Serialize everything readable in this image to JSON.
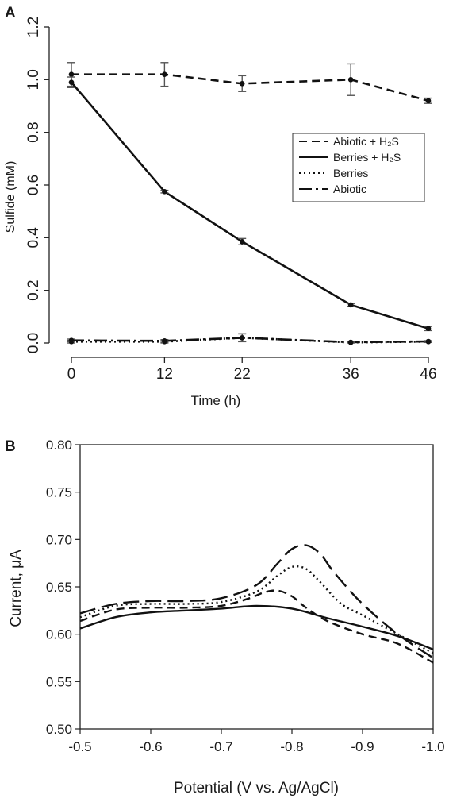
{
  "panels": {
    "a": {
      "letter": "A"
    },
    "b": {
      "letter": "B"
    }
  },
  "colors": {
    "line": "#111111",
    "errorbar": "#555555",
    "axis": "#222222"
  },
  "chart_data": [
    {
      "id": "A",
      "type": "line",
      "ylabel": "Sulfide (mM)",
      "xlabel": "Time (h)",
      "x_ticks": [
        0,
        12,
        22,
        36,
        46
      ],
      "x_tick_labels": [
        "0",
        "12",
        "22",
        "36",
        "46"
      ],
      "ylim": [
        0,
        1.2
      ],
      "y_ticks": [
        0.0,
        0.2,
        0.4,
        0.6,
        0.8,
        1.0,
        1.2
      ],
      "y_tick_labels": [
        "0.0",
        "0.2",
        "0.4",
        "0.6",
        "0.8",
        "1.0",
        "1.2"
      ],
      "legend_position": "center-right",
      "series": [
        {
          "name": "Abiotic + H₂S",
          "dash": "dashed",
          "x": [
            0,
            12,
            22,
            36,
            46
          ],
          "y": [
            1.02,
            1.02,
            0.985,
            1.0,
            0.92
          ],
          "err": [
            0.045,
            0.045,
            0.03,
            0.06,
            0.01
          ]
        },
        {
          "name": "Berries + H₂S",
          "dash": "solid",
          "x": [
            0,
            12,
            22,
            36,
            46
          ],
          "y": [
            0.99,
            0.575,
            0.385,
            0.145,
            0.055
          ],
          "err": [
            0.02,
            0.005,
            0.012,
            0.005,
            0.008
          ]
        },
        {
          "name": "Berries",
          "dash": "dotted",
          "x": [
            0,
            12,
            22,
            36,
            46
          ],
          "y": [
            0.005,
            0.005,
            0.02,
            0.002,
            0.005
          ],
          "err": [
            0.005,
            0.005,
            0.015,
            0.002,
            0.003
          ]
        },
        {
          "name": "Abiotic",
          "dash": "dashdot",
          "x": [
            0,
            12,
            22,
            36,
            46
          ],
          "y": [
            0.01,
            0.008,
            0.02,
            0.003,
            0.006
          ],
          "err": [
            0.005,
            0.005,
            0.015,
            0.002,
            0.003
          ]
        }
      ]
    },
    {
      "id": "B",
      "type": "line",
      "ylabel": "Current, μA",
      "xlabel": "Potential (V vs. Ag/AgCl)",
      "x_ticks": [
        -0.5,
        -0.6,
        -0.7,
        -0.8,
        -0.9,
        -1.0
      ],
      "x_tick_labels": [
        "-0.5",
        "-0.6",
        "-0.7",
        "-0.8",
        "-0.9",
        "-1.0"
      ],
      "xlim": [
        -0.5,
        -1.0
      ],
      "ylim": [
        0.5,
        0.8
      ],
      "y_ticks": [
        0.5,
        0.55,
        0.6,
        0.65,
        0.7,
        0.75,
        0.8
      ],
      "y_tick_labels": [
        "0.50",
        "0.55",
        "0.60",
        "0.65",
        "0.70",
        "0.75",
        "0.80"
      ],
      "series": [
        {
          "dash": "longdash",
          "x": [
            -0.5,
            -0.55,
            -0.6,
            -0.65,
            -0.7,
            -0.75,
            -0.78,
            -0.8,
            -0.82,
            -0.84,
            -0.86,
            -0.9,
            -0.95,
            -1.0
          ],
          "y": [
            0.622,
            0.632,
            0.635,
            0.635,
            0.638,
            0.652,
            0.675,
            0.69,
            0.694,
            0.685,
            0.665,
            0.632,
            0.6,
            0.575
          ]
        },
        {
          "dash": "dotted",
          "x": [
            -0.5,
            -0.55,
            -0.6,
            -0.65,
            -0.7,
            -0.75,
            -0.78,
            -0.8,
            -0.82,
            -0.84,
            -0.87,
            -0.9,
            -0.95,
            -1.0
          ],
          "y": [
            0.618,
            0.63,
            0.632,
            0.632,
            0.634,
            0.645,
            0.662,
            0.671,
            0.669,
            0.655,
            0.632,
            0.62,
            0.6,
            0.58
          ]
        },
        {
          "dash": "dashed",
          "x": [
            -0.5,
            -0.55,
            -0.6,
            -0.65,
            -0.7,
            -0.74,
            -0.76,
            -0.78,
            -0.8,
            -0.82,
            -0.85,
            -0.9,
            -0.95,
            -1.0
          ],
          "y": [
            0.614,
            0.626,
            0.628,
            0.628,
            0.63,
            0.638,
            0.644,
            0.646,
            0.64,
            0.628,
            0.614,
            0.6,
            0.59,
            0.57
          ]
        },
        {
          "dash": "solid",
          "x": [
            -0.5,
            -0.55,
            -0.6,
            -0.65,
            -0.7,
            -0.75,
            -0.8,
            -0.85,
            -0.9,
            -0.95,
            -1.0
          ],
          "y": [
            0.606,
            0.618,
            0.623,
            0.625,
            0.627,
            0.63,
            0.627,
            0.617,
            0.608,
            0.598,
            0.584
          ]
        }
      ]
    }
  ]
}
